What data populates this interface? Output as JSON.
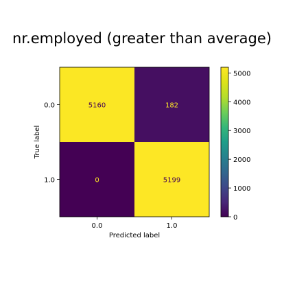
{
  "chart_data": {
    "type": "heatmap",
    "title": "nr.employed (greater than average)",
    "xlabel": "Predicted label",
    "ylabel": "True label",
    "x_categories": [
      "0.0",
      "1.0"
    ],
    "y_categories": [
      "0.0",
      "1.0"
    ],
    "values": [
      [
        5160,
        182
      ],
      [
        0,
        5199
      ]
    ],
    "colormap": "viridis",
    "colorbar": {
      "range": [
        0,
        5199
      ],
      "ticks": [
        0,
        1000,
        2000,
        3000,
        4000,
        5000
      ]
    },
    "text_colors": {
      "on_dark": "#fde725",
      "on_light": "#440154"
    }
  }
}
